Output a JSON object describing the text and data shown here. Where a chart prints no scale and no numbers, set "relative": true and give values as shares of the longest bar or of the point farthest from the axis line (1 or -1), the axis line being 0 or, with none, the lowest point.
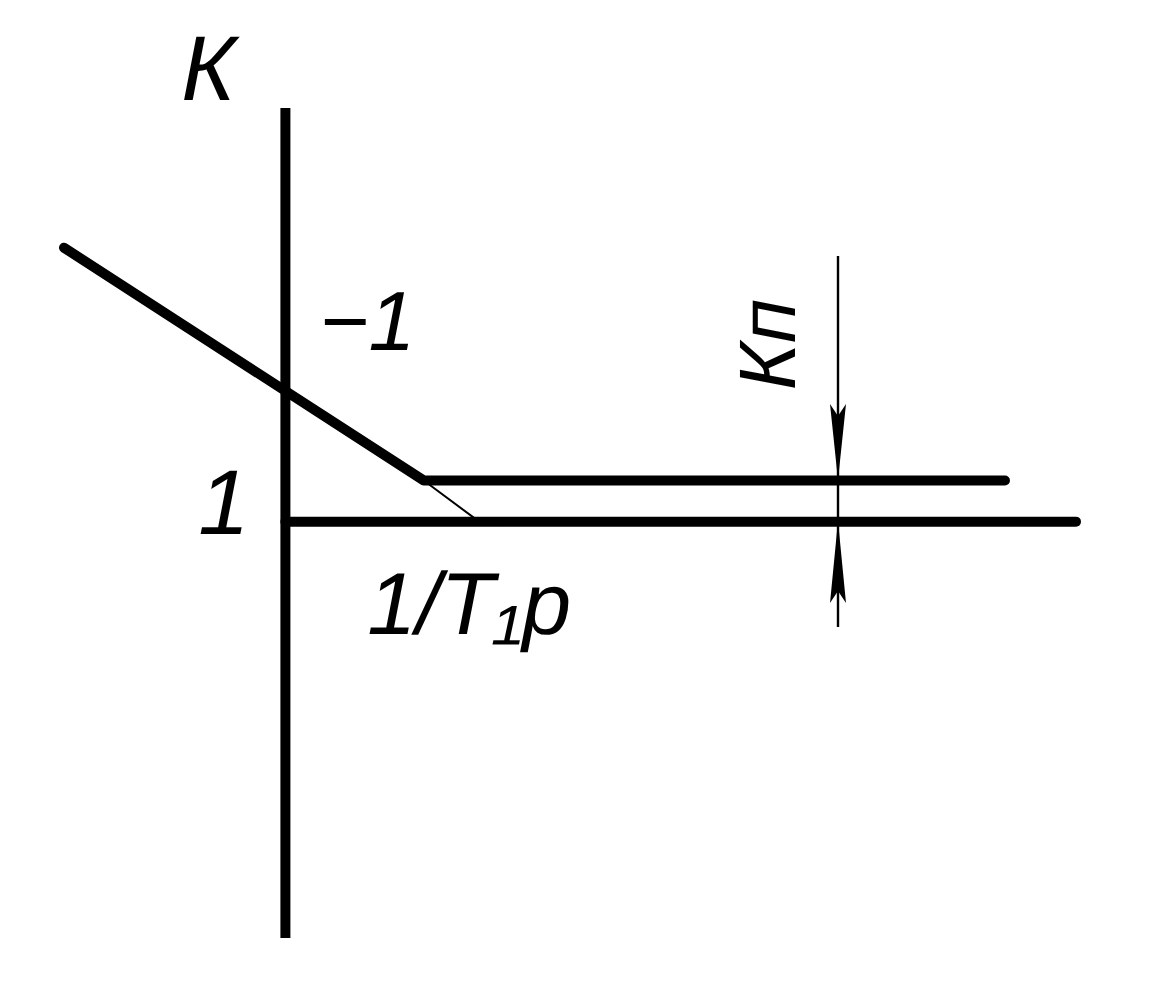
{
  "chart_data": {
    "type": "line",
    "relative": true,
    "ylabel": "К",
    "marker": "none",
    "line_style": "solid",
    "categories": [
      null,
      null,
      null,
      null,
      null,
      null,
      null,
      null,
      null,
      null,
      null,
      null,
      null,
      null,
      null,
      null,
      null,
      null,
      null,
      null,
      null,
      null,
      null,
      null,
      null,
      null,
      null,
      null,
      null,
      null,
      null,
      null,
      null,
      null,
      null,
      null,
      null,
      null
    ],
    "series": [
      {
        "color": "#000000",
        "values": [
          1,
          null,
          null,
          null,
          null,
          null,
          null,
          null,
          null,
          null,
          null,
          null,
          null,
          0.15,
          null,
          null,
          null,
          null,
          null,
          null,
          null,
          null,
          null,
          null,
          null,
          null,
          null,
          null,
          null,
          null,
          null,
          null,
          null,
          null,
          0.15,
          null,
          null,
          null
        ]
      },
      {
        "color": "#000000",
        "values": [
          null,
          null,
          null,
          null,
          null,
          null,
          null,
          null,
          null,
          null,
          null,
          null,
          null,
          0.15,
          null,
          0,
          null,
          null,
          null,
          null,
          null,
          null,
          null,
          null,
          null,
          null,
          null,
          null,
          null,
          null,
          null,
          null,
          null,
          null,
          null,
          null,
          null,
          null
        ]
      }
    ],
    "annotations": [
      "1",
      "−1",
      {
        "text": "Кп",
        "y": 0.15
      },
      "1/T₁p"
    ]
  }
}
